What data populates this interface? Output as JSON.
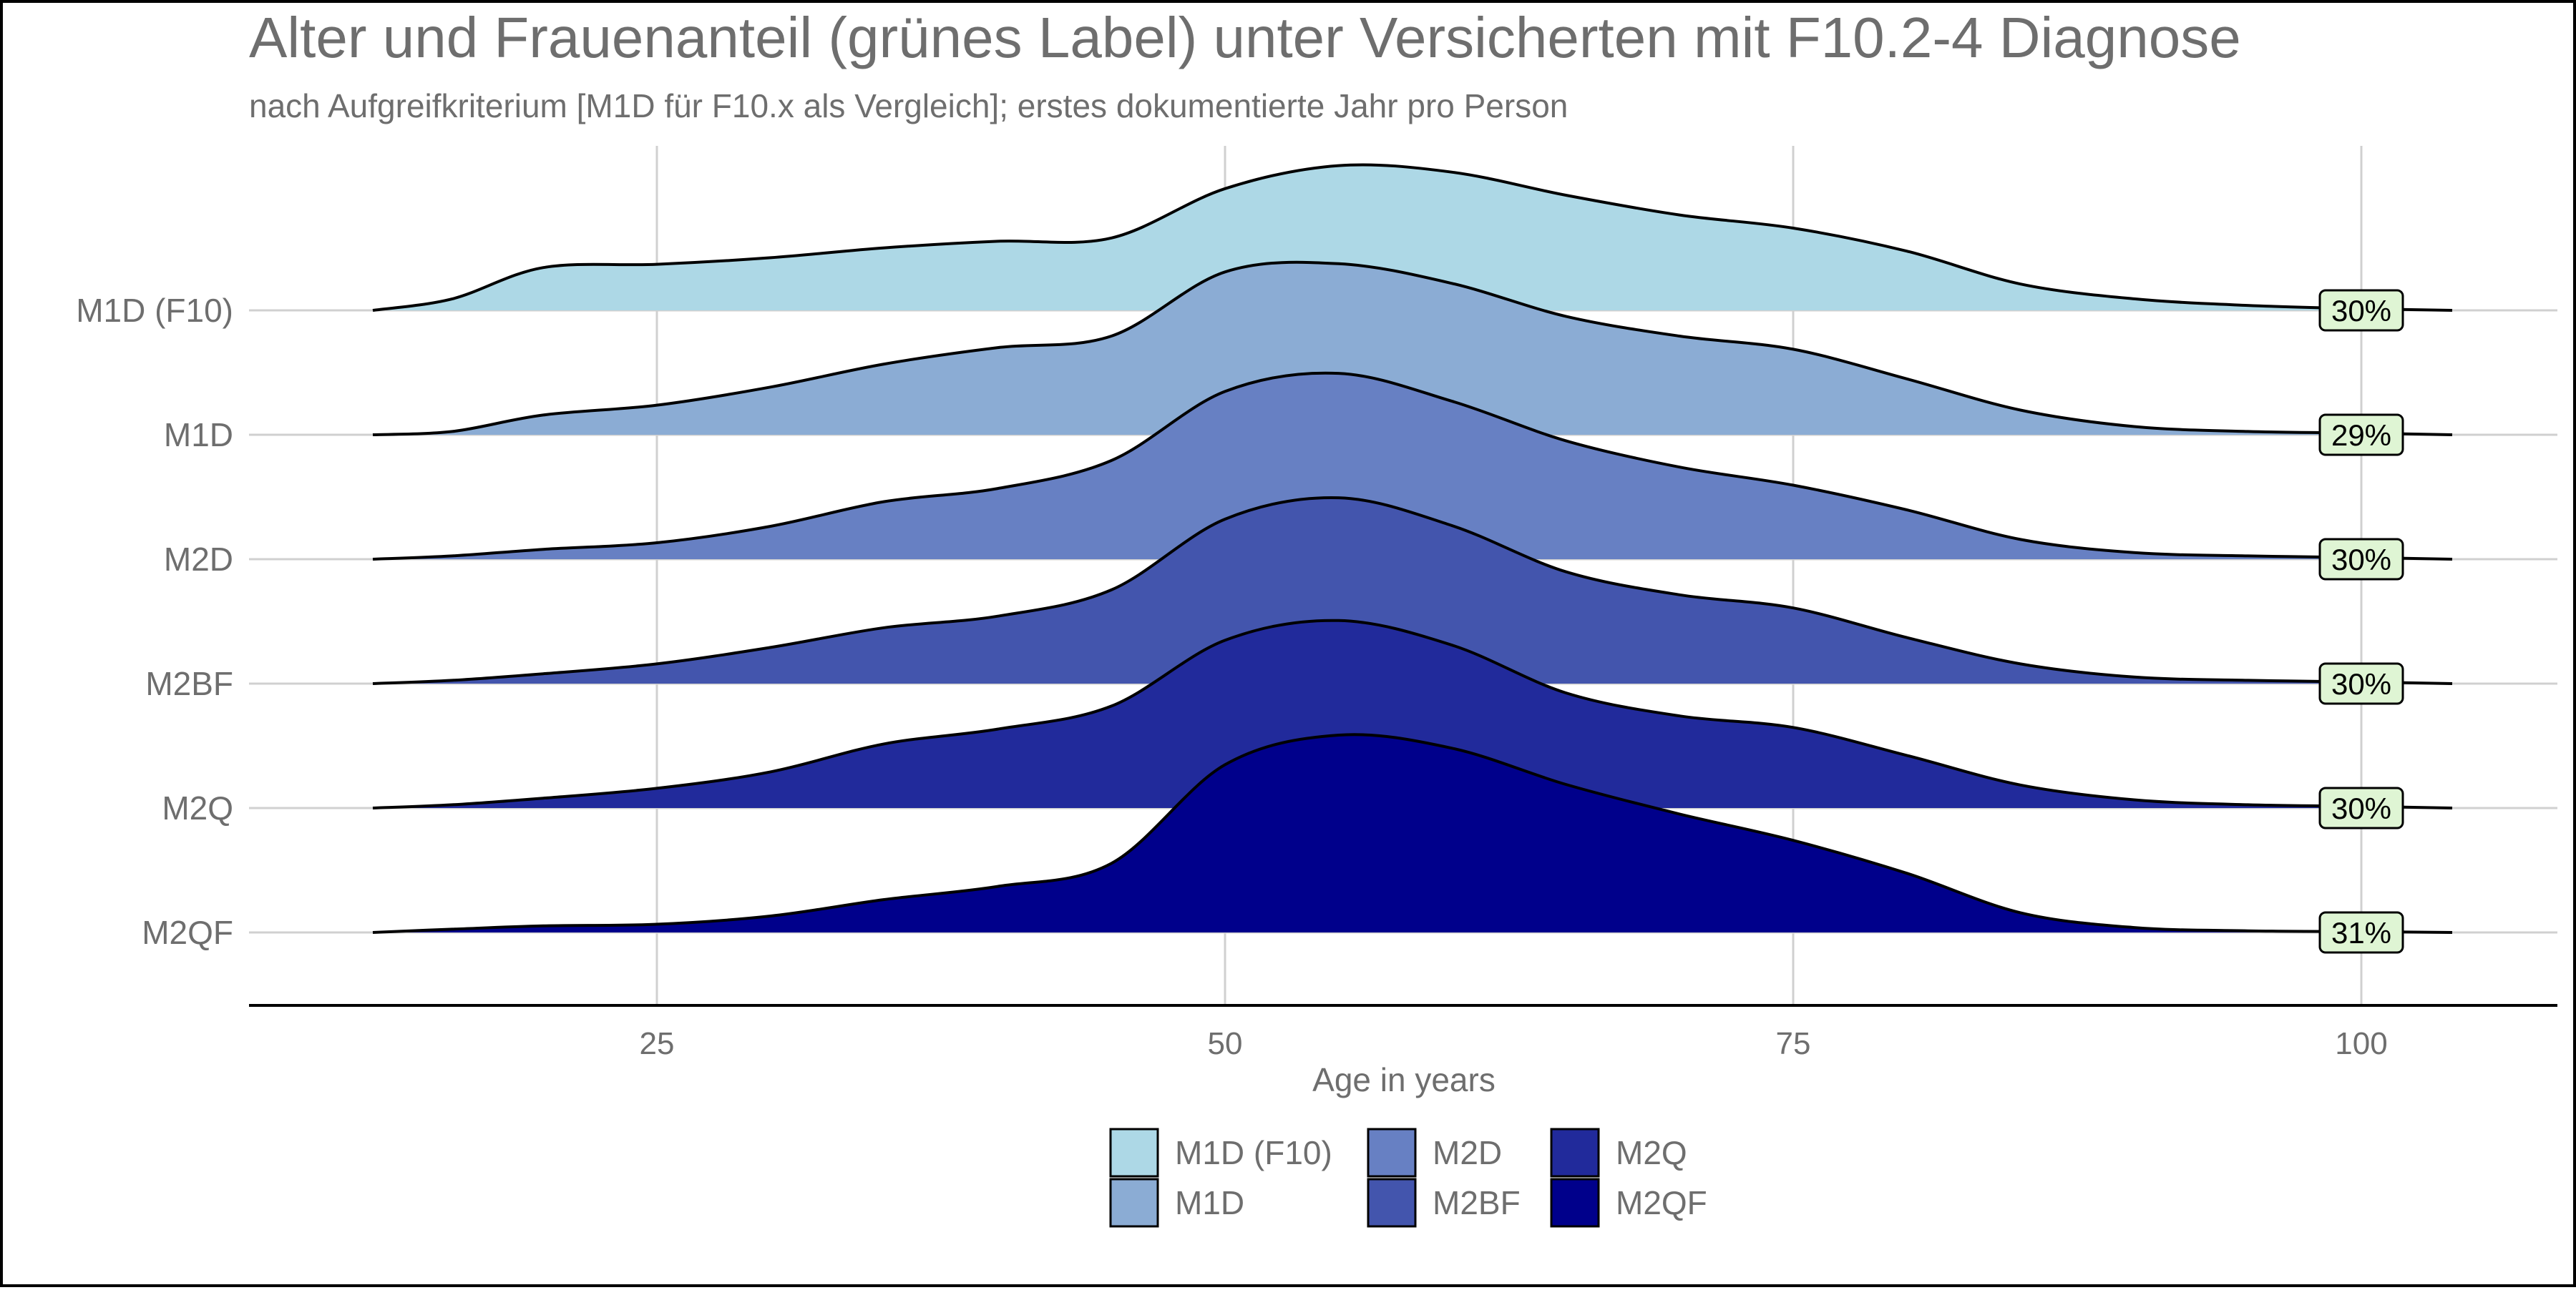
{
  "chart_data": {
    "type": "ridgeline",
    "title": "Alter und Frauenanteil (grünes Label) unter Versicherten mit F10.2-4 Diagnose",
    "subtitle": "nach Aufgreifkriterium [M1D für F10.x als Vergleich]; erstes dokumentierte Jahr pro Person",
    "xlabel": "Age in years",
    "ylabel": "",
    "xlim": [
      12.5,
      104
    ],
    "x_ticks": [
      25,
      50,
      75,
      100
    ],
    "x_tick_labels": [
      "25",
      "50",
      "75",
      "100"
    ],
    "grid": true,
    "legend_position": "bottom",
    "categories": [
      "M1D (F10)",
      "M1D",
      "M2D",
      "M2BF",
      "M2Q",
      "M2QF"
    ],
    "x": [
      12.5,
      16,
      20,
      25,
      30,
      35,
      40,
      45,
      50,
      55,
      60,
      65,
      70,
      75,
      80,
      85,
      90,
      95,
      100,
      104
    ],
    "series": [
      {
        "name": "M1D (F10)",
        "color": "#ADD8E6",
        "female_share": "30%",
        "values": [
          0,
          0.07,
          0.26,
          0.28,
          0.32,
          0.38,
          0.42,
          0.44,
          0.74,
          0.88,
          0.84,
          0.7,
          0.58,
          0.5,
          0.36,
          0.16,
          0.07,
          0.03,
          0.01,
          0
        ]
      },
      {
        "name": "M1D",
        "color": "#8BACD4",
        "female_share": "29%",
        "values": [
          0,
          0.02,
          0.12,
          0.18,
          0.29,
          0.43,
          0.53,
          0.6,
          0.99,
          1.04,
          0.92,
          0.72,
          0.6,
          0.52,
          0.34,
          0.15,
          0.05,
          0.02,
          0.01,
          0
        ]
      },
      {
        "name": "M2D",
        "color": "#6780C3",
        "female_share": "30%",
        "values": [
          0,
          0.02,
          0.06,
          0.1,
          0.2,
          0.35,
          0.43,
          0.6,
          1.02,
          1.13,
          0.96,
          0.72,
          0.56,
          0.45,
          0.3,
          0.12,
          0.04,
          0.02,
          0.01,
          0
        ]
      },
      {
        "name": "M2BF",
        "color": "#4355AD",
        "female_share": "30%",
        "values": [
          0,
          0.02,
          0.06,
          0.12,
          0.22,
          0.34,
          0.41,
          0.57,
          1.0,
          1.13,
          0.96,
          0.68,
          0.54,
          0.46,
          0.28,
          0.12,
          0.04,
          0.02,
          0.01,
          0
        ]
      },
      {
        "name": "M2Q",
        "color": "#212A9B",
        "female_share": "30%",
        "values": [
          0,
          0.02,
          0.06,
          0.12,
          0.22,
          0.39,
          0.48,
          0.62,
          1.02,
          1.14,
          0.99,
          0.7,
          0.56,
          0.49,
          0.32,
          0.14,
          0.05,
          0.02,
          0.01,
          0
        ]
      },
      {
        "name": "M2QF",
        "color": "#00008B",
        "female_share": "31%",
        "values": [
          0,
          0.02,
          0.04,
          0.05,
          0.1,
          0.2,
          0.28,
          0.42,
          1.02,
          1.2,
          1.12,
          0.9,
          0.72,
          0.56,
          0.36,
          0.12,
          0.03,
          0.01,
          0.005,
          0
        ]
      }
    ]
  }
}
